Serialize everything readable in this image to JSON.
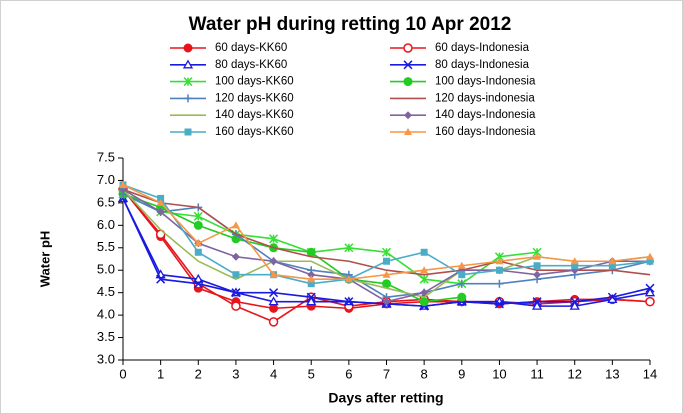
{
  "chart_data": {
    "type": "line",
    "title": "Water pH during retting 10 Apr 2012",
    "x_label": "Days after retting",
    "y_label": "Water pH",
    "x": [
      0,
      1,
      2,
      3,
      4,
      5,
      6,
      7,
      8,
      9,
      10,
      11,
      12,
      13,
      14
    ],
    "xlim": [
      0,
      14
    ],
    "xticks": [
      0,
      1,
      2,
      3,
      4,
      5,
      6,
      7,
      8,
      9,
      10,
      11,
      12,
      13,
      14
    ],
    "ylim": [
      3,
      7.5
    ],
    "yticks": [
      {
        "value": 3,
        "label": "3.0"
      },
      3.5,
      {
        "value": 4,
        "label": "4.0"
      },
      4.5,
      {
        "value": 5,
        "label": "5.0"
      },
      5.5,
      {
        "value": 6,
        "label": "6.0"
      },
      6.5,
      {
        "value": 7,
        "label": "7.0"
      },
      7.5
    ],
    "grid": false,
    "series": [
      {
        "name": "60 days-KK60",
        "color": "#e8141c",
        "marker": "circle",
        "values": [
          6.8,
          5.75,
          4.6,
          4.3,
          4.15,
          4.2,
          4.15,
          4.25,
          4.3,
          4.3,
          4.25,
          4.3,
          4.35,
          4.35,
          4.3
        ]
      },
      {
        "name": "60 days-Indonesia",
        "color": "#e8141c",
        "marker": "circle-open",
        "values": [
          6.8,
          5.8,
          4.7,
          4.2,
          3.85,
          4.4,
          4.2,
          4.3,
          4.35,
          4.3,
          4.3,
          4.25,
          4.3,
          4.35,
          4.3
        ]
      },
      {
        "name": "80 days-KK60",
        "color": "#1a1ae0",
        "marker": "triangle-open",
        "values": [
          6.6,
          4.9,
          4.8,
          4.5,
          4.3,
          4.3,
          4.3,
          4.25,
          4.2,
          4.3,
          4.3,
          4.2,
          4.2,
          4.35,
          4.5
        ]
      },
      {
        "name": "80 days-Indonesia",
        "color": "#1a1ae0",
        "marker": "x",
        "values": [
          6.6,
          4.8,
          4.7,
          4.5,
          4.5,
          4.4,
          4.3,
          4.25,
          4.2,
          4.3,
          4.25,
          4.3,
          4.3,
          4.4,
          4.6
        ]
      },
      {
        "name": "100 days-KK60",
        "color": "#33e033",
        "marker": "star",
        "values": [
          6.7,
          6.3,
          6.2,
          5.8,
          5.7,
          5.4,
          5.5,
          5.4,
          4.8,
          4.7,
          5.3,
          5.4,
          null,
          null,
          null
        ]
      },
      {
        "name": "100 days-Indonesia",
        "color": "#22cc22",
        "marker": "circle",
        "values": [
          6.7,
          6.4,
          6.0,
          5.7,
          5.5,
          5.4,
          4.8,
          4.7,
          4.3,
          4.4,
          null,
          null,
          null,
          null,
          null
        ]
      },
      {
        "name": "120 days-KK60",
        "color": "#4f81bd",
        "marker": "plus",
        "values": [
          6.7,
          6.3,
          6.4,
          5.8,
          5.2,
          5.0,
          4.9,
          4.4,
          4.5,
          4.7,
          4.7,
          4.8,
          4.9,
          5.0,
          5.2
        ]
      },
      {
        "name": "120 days-indonesia",
        "color": "#b0504d",
        "marker": "none",
        "values": [
          6.8,
          6.5,
          6.4,
          5.8,
          5.5,
          5.3,
          5.2,
          5.0,
          4.9,
          5.0,
          5.2,
          5.0,
          5.0,
          5.0,
          4.9
        ]
      },
      {
        "name": "140 days-KK60",
        "color": "#9bbb59",
        "marker": "none",
        "values": [
          6.8,
          5.9,
          5.2,
          4.8,
          5.2,
          5.2,
          4.8,
          4.6,
          4.4,
          5.0,
          5.0,
          5.3,
          5.2,
          5.2,
          5.3
        ]
      },
      {
        "name": "140 days-Indonesia",
        "color": "#8064a2",
        "marker": "diamond",
        "values": [
          6.8,
          6.3,
          5.6,
          5.3,
          5.2,
          4.9,
          4.8,
          4.3,
          4.5,
          5.0,
          5.0,
          4.9,
          5.0,
          5.2,
          5.2
        ]
      },
      {
        "name": "160 days-KK60",
        "color": "#4bacc6",
        "marker": "square",
        "values": [
          6.9,
          6.6,
          5.4,
          4.9,
          4.9,
          4.7,
          4.8,
          5.2,
          5.4,
          4.9,
          5.0,
          5.1,
          5.1,
          5.1,
          5.2
        ]
      },
      {
        "name": "160 days-Indonesia",
        "color": "#f79646",
        "marker": "triangle",
        "values": [
          6.9,
          6.5,
          5.6,
          6.0,
          4.9,
          4.8,
          4.8,
          4.9,
          5.0,
          5.1,
          5.2,
          5.3,
          5.2,
          5.2,
          5.3
        ]
      }
    ]
  }
}
